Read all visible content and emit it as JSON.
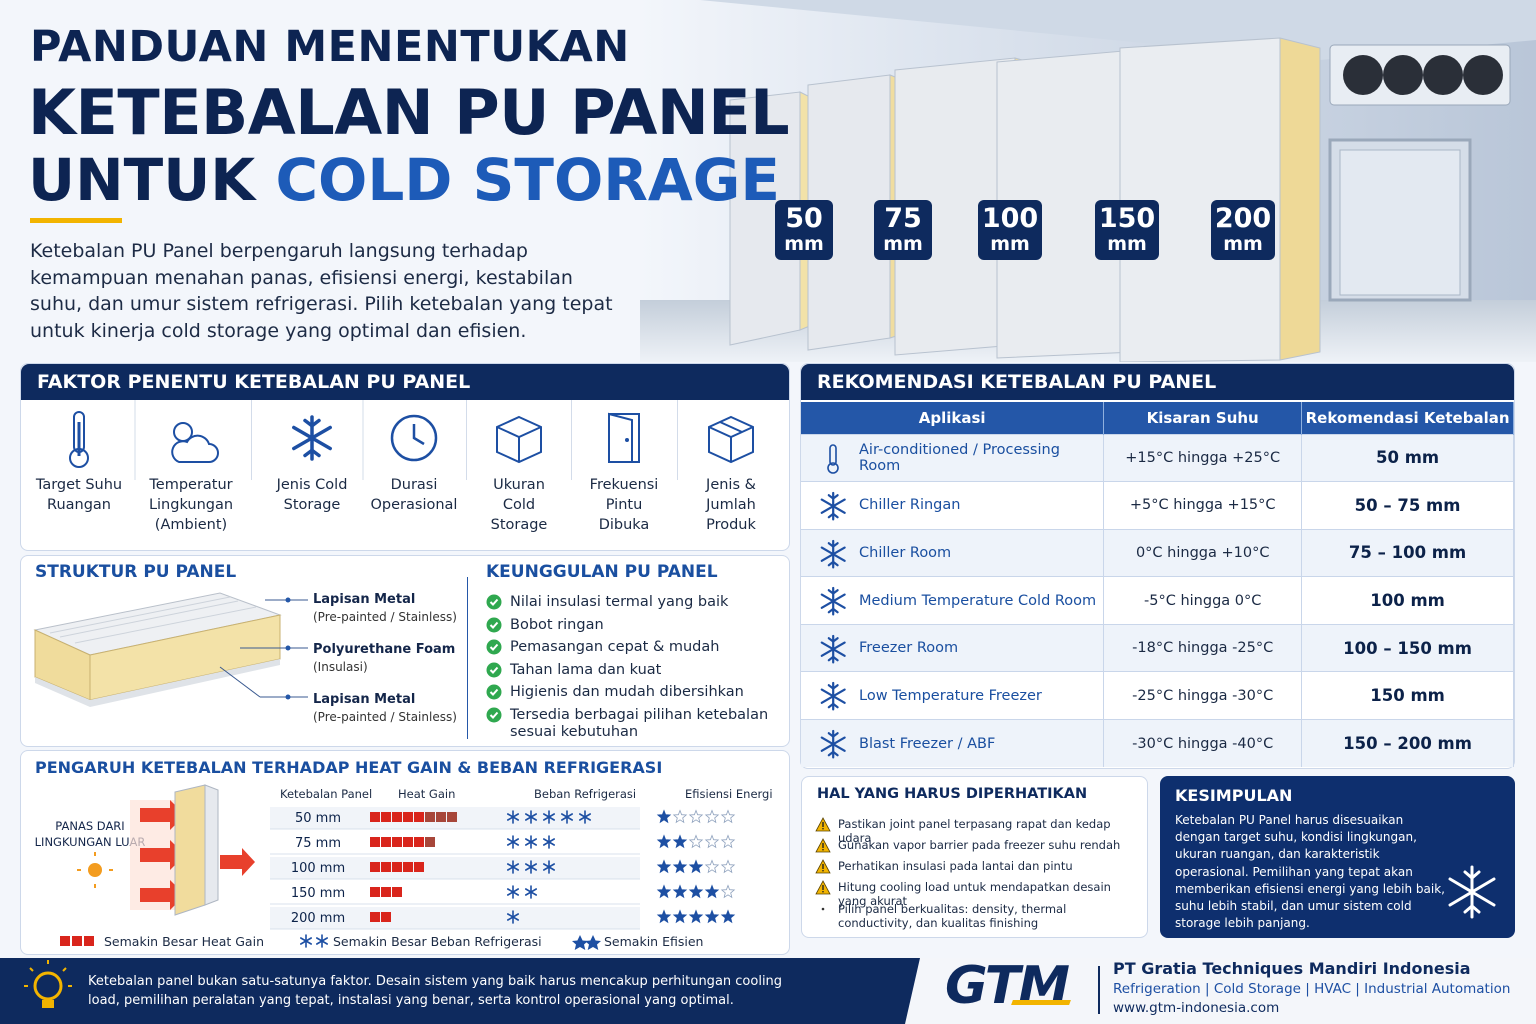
{
  "header": {
    "title_line1": "PANDUAN MENENTUKAN",
    "title_line2": "KETEBALAN PU PANEL",
    "title_line3_a": "UNTUK",
    "title_line3_b": "COLD STORAGE",
    "intro": "Ketebalan PU Panel berpengaruh langsung terhadap kemampuan menahan panas, efisiensi energi, kestabilan suhu, dan umur sistem refrigerasi. Pilih ketebalan yang tepat untuk kinerja cold storage yang optimal dan efisien."
  },
  "hero": {
    "badges": [
      {
        "value": "50",
        "unit": "mm"
      },
      {
        "value": "75",
        "unit": "mm"
      },
      {
        "value": "100",
        "unit": "mm"
      },
      {
        "value": "150",
        "unit": "mm"
      },
      {
        "value": "200",
        "unit": "mm"
      }
    ]
  },
  "factors": {
    "title": "FAKTOR PENENTU KETEBALAN PU PANEL",
    "items": [
      "Target Suhu Ruangan",
      "Temperatur Lingkungan (Ambient)",
      "Jenis Cold Storage",
      "Durasi Operasional",
      "Ukuran Cold Storage",
      "Frekuensi Pintu Dibuka",
      "Jenis & Jumlah Produk"
    ]
  },
  "structure": {
    "title": "STRUKTUR PU PANEL",
    "layers": [
      {
        "name": "Lapisan Metal",
        "note": "(Pre-painted / Stainless)"
      },
      {
        "name": "Polyurethane Foam",
        "note": "(Insulasi)"
      },
      {
        "name": "Lapisan Metal",
        "note": "(Pre-painted / Stainless)"
      }
    ]
  },
  "advantages": {
    "title": "KEUNGGULAN PU PANEL",
    "items": [
      "Nilai insulasi termal yang baik",
      "Bobot ringan",
      "Pemasangan cepat & mudah",
      "Tahan lama dan kuat",
      "Higienis dan mudah dibersihkan",
      "Tersedia berbagai pilihan ketebalan sesuai kebutuhan"
    ]
  },
  "heat": {
    "title": "PENGARUH KETEBALAN TERHADAP HEAT GAIN & BEBAN REFRIGERASI",
    "side_label": "PANAS DARI LINGKUNGAN LUAR",
    "columns": [
      "Ketebalan Panel",
      "Heat Gain",
      "Beban Refrigerasi",
      "Efisiensi Energi"
    ],
    "rows": [
      {
        "thickness": "50 mm",
        "heat_gain": 8,
        "load": 5,
        "efficiency": 1
      },
      {
        "thickness": "75 mm",
        "heat_gain": 6,
        "load": 3,
        "efficiency": 2
      },
      {
        "thickness": "100 mm",
        "heat_gain": 5,
        "load": 3,
        "efficiency": 3
      },
      {
        "thickness": "150 mm",
        "heat_gain": 3,
        "load": 2,
        "efficiency": 4
      },
      {
        "thickness": "200 mm",
        "heat_gain": 2,
        "load": 1,
        "efficiency": 5
      }
    ],
    "legend": [
      "Semakin Besar Heat Gain",
      "Semakin Besar Beban Refrigerasi",
      "Semakin Efisien"
    ]
  },
  "recommendation": {
    "title": "REKOMENDASI KETEBALAN PU PANEL",
    "columns": [
      "Aplikasi",
      "Kisaran Suhu",
      "Rekomendasi Ketebalan"
    ],
    "rows": [
      {
        "application": "Air-conditioned / Processing Room",
        "temperature": "+15°C hingga +25°C",
        "thickness": "50 mm"
      },
      {
        "application": "Chiller Ringan",
        "temperature": "+5°C hingga +15°C",
        "thickness": "50 – 75 mm"
      },
      {
        "application": "Chiller Room",
        "temperature": "0°C hingga +10°C",
        "thickness": "75 – 100 mm"
      },
      {
        "application": "Medium Temperature Cold Room",
        "temperature": "-5°C hingga 0°C",
        "thickness": "100 mm"
      },
      {
        "application": "Freezer Room",
        "temperature": "-18°C hingga -25°C",
        "thickness": "100 – 150 mm"
      },
      {
        "application": "Low Temperature Freezer",
        "temperature": "-25°C hingga -30°C",
        "thickness": "150 mm"
      },
      {
        "application": "Blast Freezer / ABF",
        "temperature": "-30°C hingga -40°C",
        "thickness": "150 – 200 mm"
      }
    ]
  },
  "notes": {
    "title": "HAL YANG HARUS DIPERHATIKAN",
    "items": [
      "Pastikan joint panel terpasang rapat dan kedap udara",
      "Gunakan vapor barrier pada freezer suhu rendah",
      "Perhatikan insulasi pada lantai dan pintu",
      "Hitung cooling load untuk mendapatkan desain yang akurat",
      "Pilih panel berkualitas: density, thermal conductivity, dan kualitas finishing"
    ]
  },
  "conclusion": {
    "title": "KESIMPULAN",
    "text": "Ketebalan PU Panel harus disesuaikan dengan target suhu, kondisi lingkungan, ukuran ruangan, dan karakteristik operasional. Pemilihan yang tepat akan memberikan efisiensi energi yang lebih baik, suhu lebih stabil, dan umur sistem cold storage lebih panjang."
  },
  "footer": {
    "tip": "Ketebalan panel bukan satu-satunya faktor. Desain sistem yang baik harus mencakup perhitungan cooling load, pemilihan peralatan yang tepat, instalasi yang benar, serta kontrol operasional yang optimal.",
    "logo": "GTM",
    "company": "PT Gratia Techniques Mandiri Indonesia",
    "services": "Refrigeration | Cold Storage | HVAC | Industrial Automation",
    "website": "www.gtm-indonesia.com"
  }
}
